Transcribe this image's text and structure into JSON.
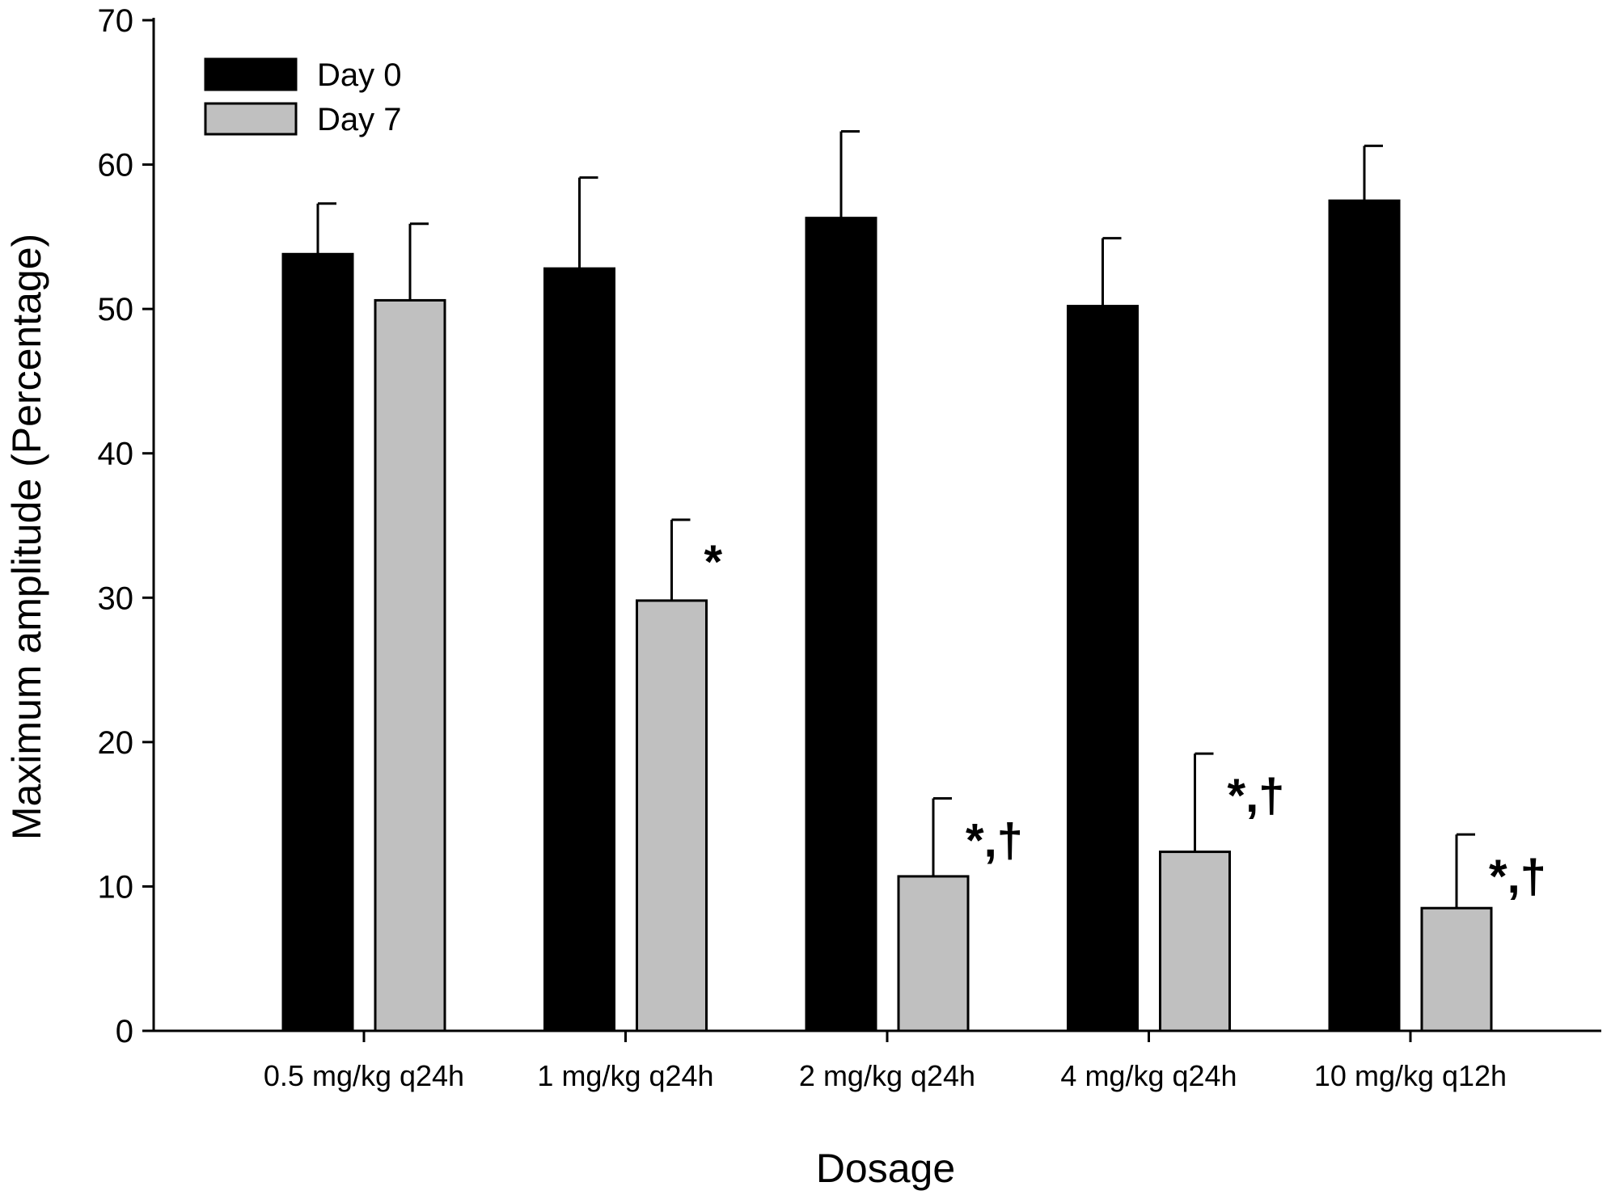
{
  "chart_data": {
    "type": "bar",
    "title": "",
    "xlabel": "Dosage",
    "ylabel": "Maximum amplitude (Percentage)",
    "ylim": [
      0,
      70
    ],
    "yticks": [
      "0",
      "10",
      "20",
      "30",
      "40",
      "50",
      "60",
      "70"
    ],
    "categories": [
      "0.5 mg/kg q24h",
      "1 mg/kg q24h",
      "2 mg/kg q24h",
      "4 mg/kg q24h",
      "10 mg/kg q12h"
    ],
    "series": [
      {
        "name": "Day 0",
        "color": "#000000",
        "values": [
          53.8,
          52.8,
          56.3,
          50.2,
          57.5
        ],
        "error": [
          3.5,
          6.3,
          6.0,
          4.7,
          3.8
        ]
      },
      {
        "name": "Day 7",
        "color": "#c0c0c0",
        "values": [
          50.6,
          29.8,
          10.7,
          12.4,
          8.5
        ],
        "error": [
          5.3,
          5.6,
          5.4,
          6.8,
          5.1
        ]
      }
    ],
    "annotations": [
      {
        "category": "1 mg/kg q24h",
        "series": "Day 7",
        "text": "*"
      },
      {
        "category": "2 mg/kg q24h",
        "series": "Day 7",
        "text": "*,†"
      },
      {
        "category": "4 mg/kg q24h",
        "series": "Day 7",
        "text": "*,†"
      },
      {
        "category": "10 mg/kg q12h",
        "series": "Day 7",
        "text": "*,†"
      }
    ],
    "legend": "top-left",
    "grid": false
  }
}
